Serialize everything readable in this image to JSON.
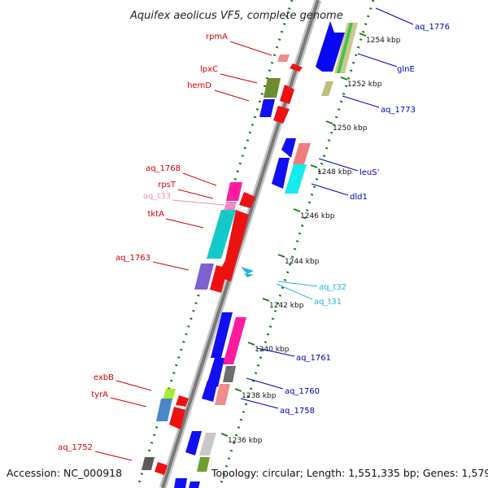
{
  "map": {
    "title": "Aquifex aeolicus VF5, complete genome",
    "accession": "Accession: NC_000918",
    "topology": "Topology: circular; Length: 1,551,335 bp; Genes: 1,579"
  },
  "colors": {
    "background": "#ffffff",
    "backbone": "#8c8c8c",
    "dotted_track": "#1f7a1f",
    "label_red": "#d40000",
    "label_blue": "#0000b4",
    "label_pink": "#f08cbe",
    "label_cyan": "#1eb4dc"
  },
  "scale": {
    "ticks": [
      "1254 kbp",
      "1252 kbp",
      "1250 kbp",
      "1248 kbp",
      "1246 kbp",
      "1244 kbp",
      "1242 kbp",
      "1240 kbp",
      "1238 kbp",
      "1236 kbp"
    ]
  },
  "genes": [
    {
      "label": "aq_1776",
      "group": "blue"
    },
    {
      "label": "glnE",
      "group": "blue"
    },
    {
      "label": "aq_1773",
      "group": "blue"
    },
    {
      "label": "leuS'",
      "group": "blue"
    },
    {
      "label": "dld1",
      "group": "blue"
    },
    {
      "label": "aq_1761",
      "group": "blue"
    },
    {
      "label": "aq_1760",
      "group": "blue"
    },
    {
      "label": "aq_1758",
      "group": "blue"
    },
    {
      "label": "rpmA",
      "group": "red"
    },
    {
      "label": "lpxC",
      "group": "red"
    },
    {
      "label": "hemD",
      "group": "red"
    },
    {
      "label": "aq_1768",
      "group": "red"
    },
    {
      "label": "rpsT",
      "group": "red"
    },
    {
      "label": "aq_t33",
      "group": "pink"
    },
    {
      "label": "tktA",
      "group": "red"
    },
    {
      "label": "aq_1763",
      "group": "red"
    },
    {
      "label": "aq_t32",
      "group": "cyan"
    },
    {
      "label": "aq_t31",
      "group": "cyan"
    },
    {
      "label": "exbB",
      "group": "red"
    },
    {
      "label": "tyrA",
      "group": "red"
    },
    {
      "label": "aq_1752",
      "group": "red"
    }
  ]
}
